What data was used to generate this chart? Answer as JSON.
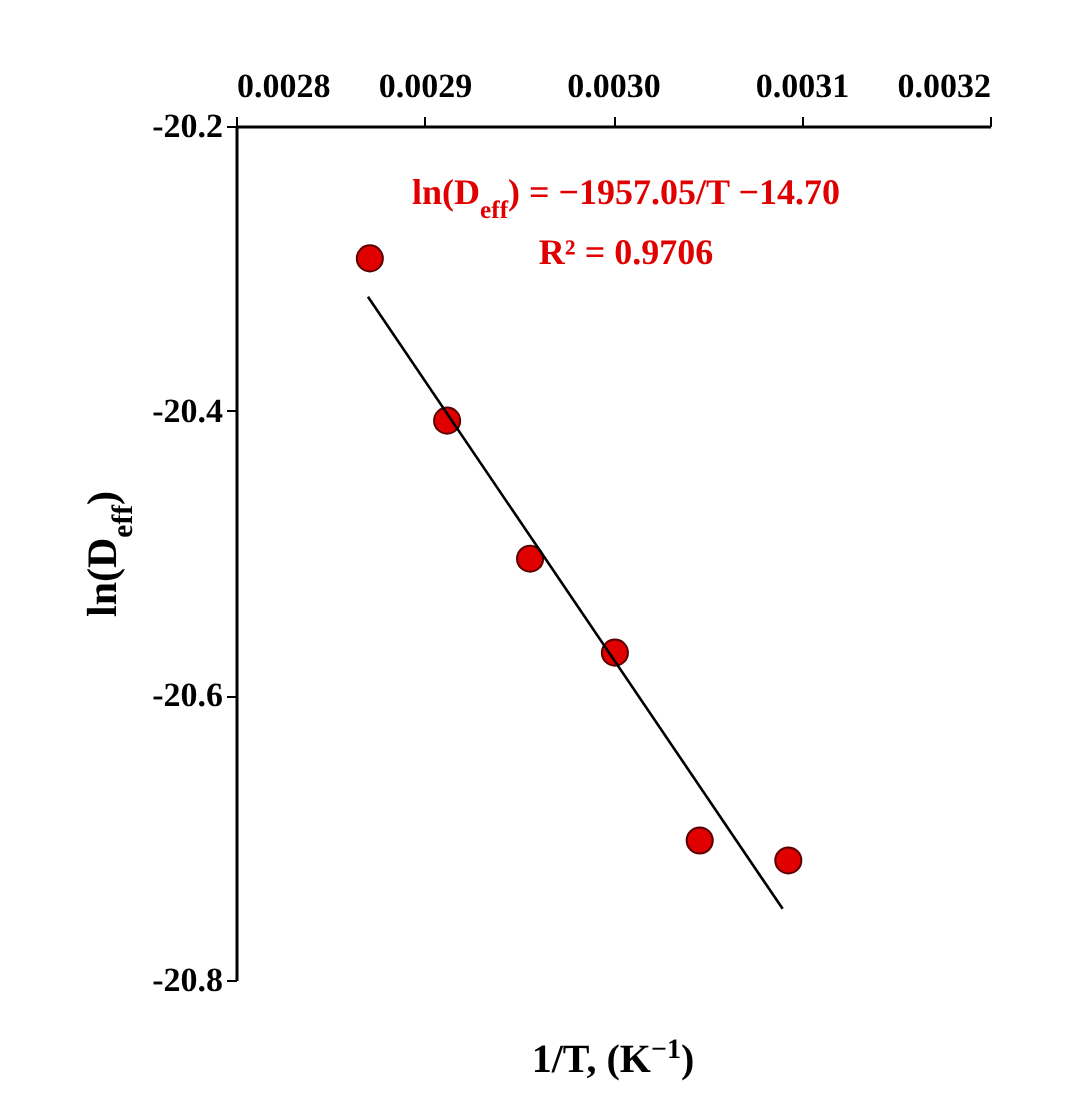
{
  "chart_data": {
    "type": "scatter",
    "xlabel": "1/T, (K$^{−1}$)",
    "ylabel": "ln(D$_{eff}$)",
    "annotations": [
      "ln(D$_{eff}$) = −1957.05/T −14.70",
      "R² = 0.9706"
    ],
    "x": [
      0.002871,
      0.002912,
      0.002956,
      0.003001,
      0.003046,
      0.003093
    ],
    "series": [
      {
        "color": "#e00000",
        "marker": "circle",
        "values": [
          -20.293,
          -20.407,
          -20.504,
          -20.57,
          -20.702,
          -20.716
        ]
      },
      {
        "type": "line",
        "marker": "none",
        "color": "#000000",
        "x": [
          0.00287,
          0.00309
        ],
        "values": [
          -20.32,
          -20.75
        ]
      }
    ],
    "xlim": [
      0.0028,
      0.0032
    ],
    "xticks": [
      0.0028,
      0.0029,
      {
        "value": 0.003,
        "label": "0.0030"
      },
      0.0031,
      0.0032
    ],
    "ylim": [
      -20.8,
      -20.2
    ],
    "yticks": [
      -20.2,
      -20.4,
      -20.6,
      -20.8
    ],
    "line_style": "solid"
  }
}
